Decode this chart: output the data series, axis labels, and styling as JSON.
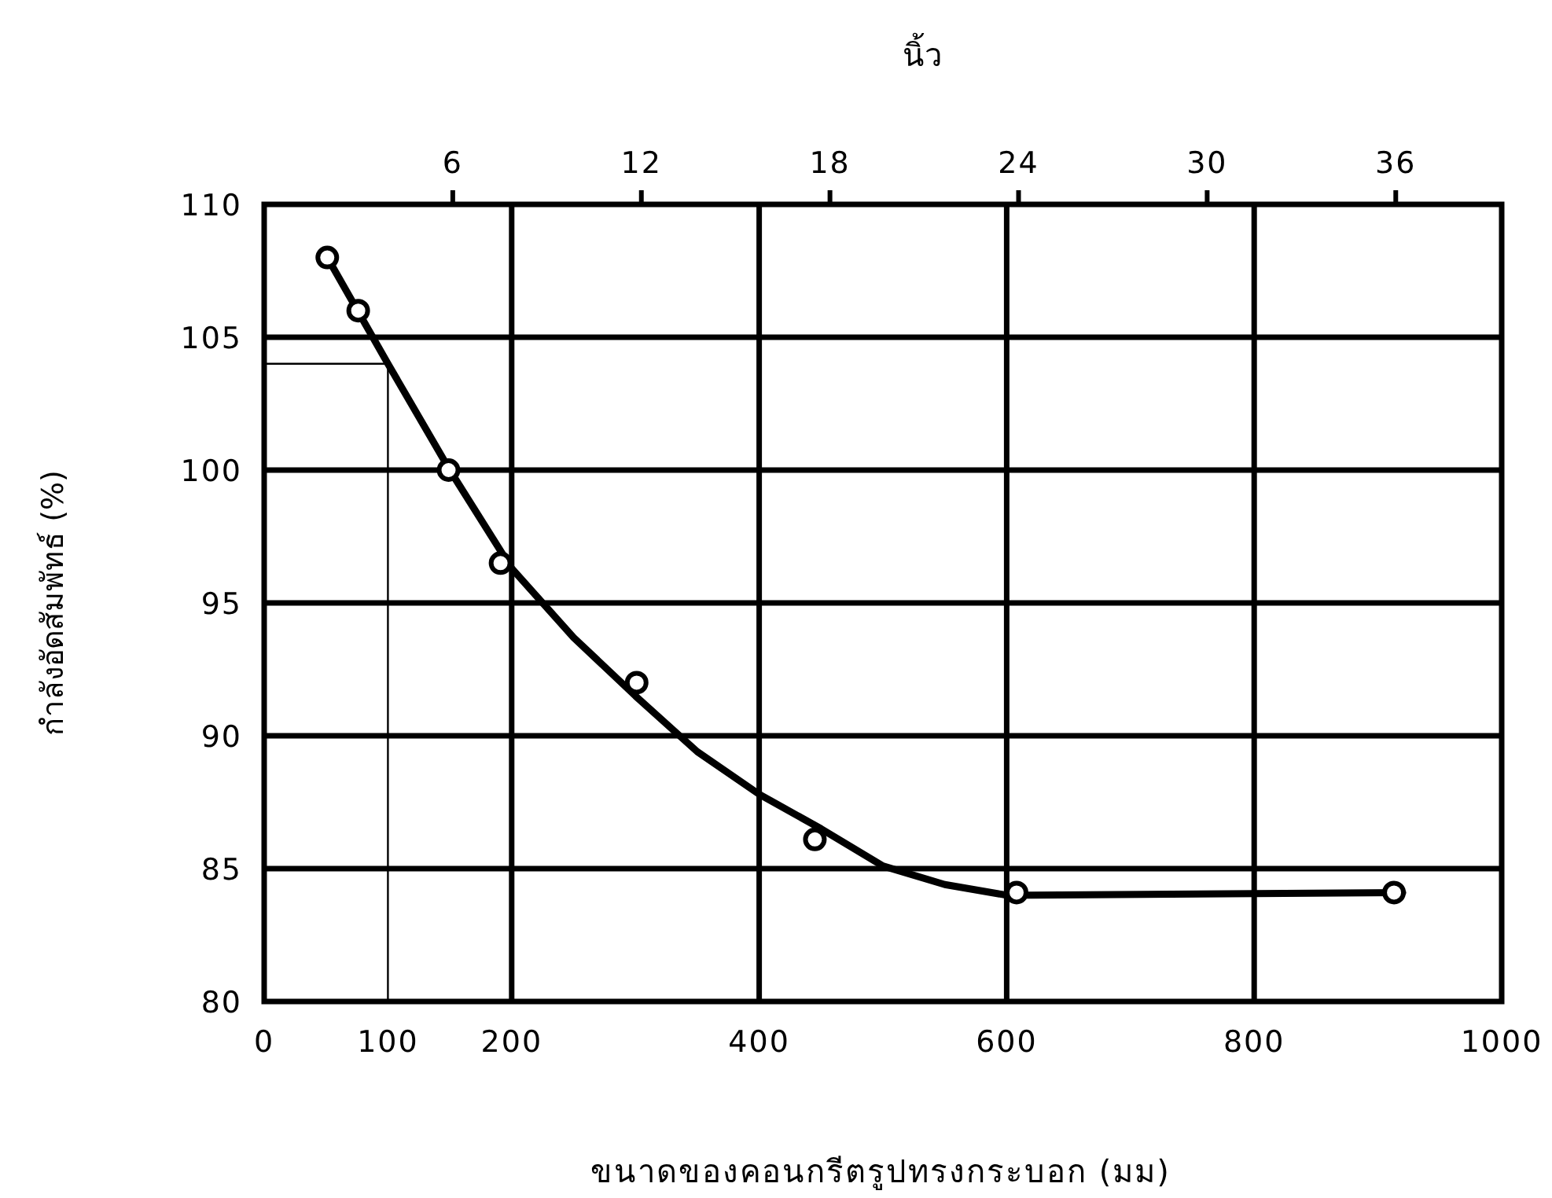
{
  "chart_data": {
    "type": "scatter",
    "xlabel": "ขนาดของคอนกรีตรูปทรงกระบอก (มม)",
    "ylabel": "กำลังอัดสัมพัทธ์ (%)",
    "x2label": "นิ้ว",
    "xlim": [
      0,
      1000
    ],
    "xticks": [
      0,
      200,
      400,
      600,
      800,
      1000
    ],
    "ylim": [
      80,
      110
    ],
    "yticks": [
      80,
      85,
      90,
      95,
      100,
      105,
      110
    ],
    "x2lim": [
      0,
      39.37
    ],
    "x2ticks": [
      6,
      12,
      18,
      24,
      30,
      36
    ],
    "grid": true,
    "ref_lines": [
      {
        "axis": "x",
        "value": 100,
        "label": "100"
      },
      {
        "axis": "y",
        "value": 104,
        "label": null
      }
    ],
    "series": [
      {
        "type": "scatter",
        "color": "#000000",
        "marker": "circle",
        "x": [
          51,
          76,
          149,
          191,
          301,
          445,
          608,
          913
        ],
        "values": [
          108,
          106,
          100,
          96.5,
          92,
          86.1,
          84.1,
          84.1
        ]
      },
      {
        "type": "line",
        "color": "#000000",
        "marker": "none",
        "x": [
          51,
          100,
          150,
          200,
          250,
          300,
          350,
          400,
          450,
          500,
          550,
          600,
          620,
          920
        ],
        "values": [
          108,
          104,
          100,
          96.3,
          93.7,
          91.5,
          89.4,
          87.8,
          86.5,
          85.1,
          84.4,
          84,
          84,
          84.1
        ]
      }
    ]
  }
}
